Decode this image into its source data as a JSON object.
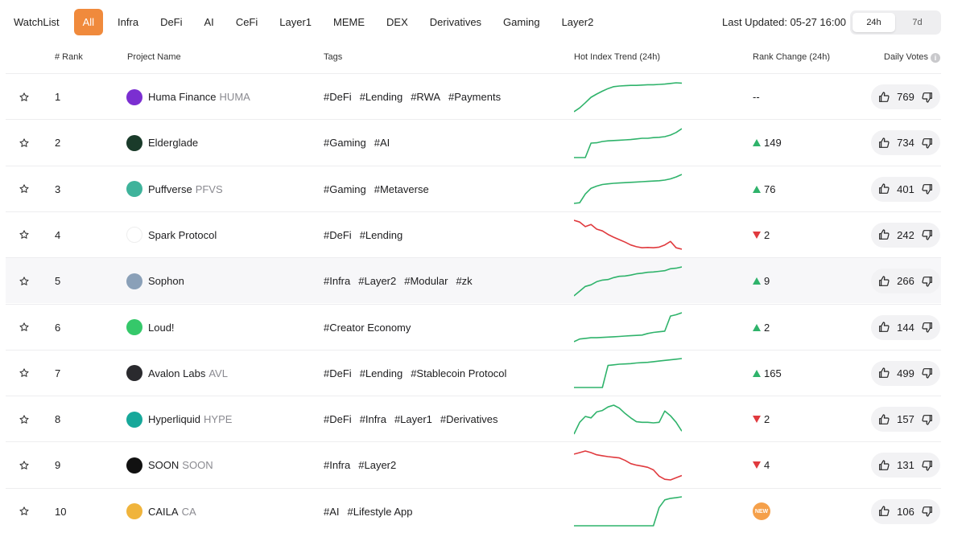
{
  "tabs": [
    "WatchList",
    "All",
    "Infra",
    "DeFi",
    "AI",
    "CeFi",
    "Layer1",
    "MEME",
    "DEX",
    "Derivatives",
    "Gaming",
    "Layer2"
  ],
  "active_tab": 1,
  "last_updated": "Last Updated: 05-27 16:00",
  "range": {
    "options": [
      "24h",
      "7d"
    ],
    "active": 0
  },
  "columns": {
    "rank": "# Rank",
    "project": "Project Name",
    "tags": "Tags",
    "trend": "Hot Index Trend (24h)",
    "change": "Rank Change (24h)",
    "votes": "Daily Votes"
  },
  "colors": {
    "up": "#2fb36b",
    "down": "#e03a3e",
    "accent": "#f08a3c"
  },
  "rows": [
    {
      "rank": "1",
      "name": "Huma Finance",
      "symbol": "HUMA",
      "logo_color": "#7b2fd1",
      "tags": [
        "#DeFi",
        "#Lending",
        "#RWA",
        "#Payments"
      ],
      "trend_dir": "up",
      "trend": [
        0,
        12,
        28,
        45,
        55,
        64,
        72,
        78,
        80,
        81,
        82,
        82,
        83,
        84,
        84,
        85,
        86,
        88,
        90,
        89
      ],
      "change_dir": "none",
      "change": "--",
      "votes": "769"
    },
    {
      "rank": "2",
      "name": "Elderglade",
      "symbol": "",
      "logo_color": "#1a3b2a",
      "tags": [
        "#Gaming",
        "#AI"
      ],
      "trend_dir": "up",
      "trend": [
        0,
        0,
        0,
        45,
        46,
        50,
        52,
        53,
        54,
        55,
        56,
        58,
        60,
        60,
        62,
        63,
        65,
        70,
        78,
        90
      ],
      "change_dir": "up",
      "change": "149",
      "votes": "734"
    },
    {
      "rank": "3",
      "name": "Puffverse",
      "symbol": "PFVS",
      "logo_color": "#3fb39b",
      "tags": [
        "#Gaming",
        "#Metaverse"
      ],
      "trend_dir": "up",
      "trend": [
        0,
        2,
        30,
        48,
        55,
        60,
        62,
        64,
        65,
        66,
        67,
        68,
        69,
        70,
        71,
        72,
        74,
        78,
        84,
        92
      ],
      "change_dir": "up",
      "change": "76",
      "votes": "401"
    },
    {
      "rank": "4",
      "name": "Spark Protocol",
      "symbol": "",
      "logo_color": "#ffffff",
      "tags": [
        "#DeFi",
        "#Lending"
      ],
      "trend_dir": "down",
      "trend": [
        90,
        85,
        72,
        78,
        65,
        60,
        50,
        42,
        35,
        28,
        20,
        15,
        12,
        13,
        12,
        14,
        20,
        30,
        12,
        8
      ],
      "change_dir": "down",
      "change": "2",
      "votes": "242"
    },
    {
      "rank": "5",
      "name": "Sophon",
      "symbol": "",
      "logo_color": "#8aa0b8",
      "tags": [
        "#Infra",
        "#Layer2",
        "#Modular",
        "#zk"
      ],
      "trend_dir": "up",
      "trend": [
        0,
        15,
        30,
        35,
        45,
        50,
        52,
        58,
        62,
        63,
        66,
        70,
        72,
        75,
        76,
        78,
        80,
        86,
        88,
        92
      ],
      "change_dir": "up",
      "change": "9",
      "votes": "266"
    },
    {
      "rank": "6",
      "name": "Loud!",
      "symbol": "",
      "logo_color": "#35c86a",
      "tags": [
        "#Creator Economy"
      ],
      "trend_dir": "up",
      "trend": [
        0,
        8,
        10,
        12,
        12,
        13,
        14,
        15,
        16,
        17,
        18,
        19,
        20,
        25,
        28,
        30,
        32,
        78,
        82,
        88
      ],
      "change_dir": "up",
      "change": "2",
      "votes": "144"
    },
    {
      "rank": "7",
      "name": "Avalon Labs",
      "symbol": "AVL",
      "logo_color": "#2a2a2e",
      "tags": [
        "#DeFi",
        "#Lending",
        "#Stablecoin Protocol"
      ],
      "trend_dir": "up",
      "trend": [
        0,
        0,
        0,
        0,
        0,
        0,
        70,
        72,
        74,
        75,
        76,
        78,
        79,
        80,
        82,
        84,
        86,
        88,
        90,
        92
      ],
      "change_dir": "up",
      "change": "165",
      "votes": "499"
    },
    {
      "rank": "8",
      "name": "Hyperliquid",
      "symbol": "HYPE",
      "logo_color": "#17a89a",
      "tags": [
        "#DeFi",
        "#Infra",
        "#Layer1",
        "#Derivatives"
      ],
      "trend_dir": "up",
      "trend": [
        0,
        40,
        60,
        55,
        75,
        80,
        92,
        98,
        88,
        70,
        55,
        42,
        40,
        40,
        38,
        40,
        78,
        62,
        40,
        10
      ],
      "change_dir": "down",
      "change": "2",
      "votes": "157"
    },
    {
      "rank": "9",
      "name": "SOON",
      "symbol": "SOON",
      "logo_color": "#111111",
      "tags": [
        "#Infra",
        "#Layer2"
      ],
      "trend_dir": "down",
      "trend": [
        90,
        95,
        100,
        95,
        88,
        85,
        82,
        80,
        78,
        70,
        60,
        55,
        52,
        48,
        40,
        20,
        10,
        8,
        15,
        22
      ],
      "change_dir": "down",
      "change": "4",
      "votes": "131"
    },
    {
      "rank": "10",
      "name": "CAILA",
      "symbol": "CA",
      "logo_color": "#f0b43c",
      "tags": [
        "#AI",
        "#Lifestyle App"
      ],
      "trend_dir": "up",
      "trend": [
        0,
        0,
        0,
        0,
        0,
        0,
        0,
        0,
        0,
        0,
        0,
        0,
        0,
        0,
        0,
        60,
        85,
        90,
        92,
        95
      ],
      "change_dir": "new",
      "change": "NEW",
      "votes": "106"
    }
  ]
}
